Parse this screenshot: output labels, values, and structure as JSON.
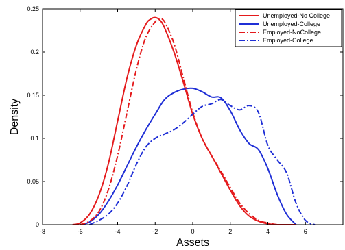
{
  "chart_data": {
    "type": "line",
    "title": "",
    "xlabel": "Assets",
    "ylabel": "Density",
    "xlim": [
      -8,
      8
    ],
    "ylim": [
      0,
      0.25
    ],
    "xticks": [
      "-8",
      "-6",
      "-4",
      "-2",
      "0",
      "2",
      "4",
      "6"
    ],
    "yticks": [
      "0",
      "0.05",
      "0.1",
      "0.15",
      "0.2",
      "0.25"
    ],
    "grid": false,
    "legend_position": "top-right",
    "series": [
      {
        "name": "Unemployed-No College",
        "color": "#e41a1c",
        "line_style": "solid",
        "x": [
          -6.4,
          -6.0,
          -5.5,
          -5.0,
          -4.5,
          -4.0,
          -3.5,
          -3.0,
          -2.5,
          -2.25,
          -2.0,
          -1.75,
          -1.5,
          -1.0,
          -0.5,
          0.0,
          0.5,
          1.0,
          1.5,
          2.0,
          2.5,
          3.0,
          3.5,
          4.0,
          4.5,
          5.0,
          5.4
        ],
        "y": [
          0.0,
          0.002,
          0.012,
          0.034,
          0.07,
          0.12,
          0.17,
          0.208,
          0.232,
          0.238,
          0.24,
          0.237,
          0.228,
          0.2,
          0.165,
          0.128,
          0.1,
          0.08,
          0.06,
          0.04,
          0.022,
          0.01,
          0.004,
          0.001,
          0.0,
          0.0,
          0.0
        ]
      },
      {
        "name": "Unemployed-College",
        "color": "#1f2fd6",
        "line_style": "solid",
        "x": [
          -6.0,
          -5.5,
          -5.0,
          -4.5,
          -4.0,
          -3.5,
          -3.0,
          -2.5,
          -2.0,
          -1.5,
          -1.0,
          -0.5,
          0.0,
          0.5,
          1.0,
          1.5,
          2.0,
          2.5,
          3.0,
          3.5,
          4.0,
          4.5,
          5.0,
          5.5
        ],
        "y": [
          0.0,
          0.003,
          0.012,
          0.027,
          0.046,
          0.068,
          0.09,
          0.11,
          0.128,
          0.145,
          0.153,
          0.157,
          0.158,
          0.154,
          0.148,
          0.147,
          0.132,
          0.11,
          0.094,
          0.087,
          0.065,
          0.035,
          0.012,
          0.0
        ]
      },
      {
        "name": "Employed-NoCollege",
        "color": "#e41a1c",
        "line_style": "dashdot",
        "x": [
          -6.0,
          -5.5,
          -5.0,
          -4.5,
          -4.0,
          -3.5,
          -3.0,
          -2.5,
          -2.0,
          -1.75,
          -1.5,
          -1.0,
          -0.5,
          0.0,
          0.5,
          1.0,
          1.5,
          2.0,
          2.5,
          3.0,
          3.5,
          4.0,
          4.5,
          5.0,
          5.5
        ],
        "y": [
          0.0,
          0.004,
          0.015,
          0.04,
          0.08,
          0.13,
          0.18,
          0.217,
          0.235,
          0.238,
          0.235,
          0.21,
          0.17,
          0.13,
          0.1,
          0.08,
          0.062,
          0.043,
          0.025,
          0.013,
          0.005,
          0.002,
          0.0,
          0.0,
          0.0
        ]
      },
      {
        "name": "Employed-College",
        "color": "#1f2fd6",
        "line_style": "dashdot",
        "x": [
          -5.5,
          -5.0,
          -4.5,
          -4.0,
          -3.5,
          -3.0,
          -2.5,
          -2.0,
          -1.5,
          -1.0,
          -0.5,
          0.0,
          0.5,
          1.0,
          1.5,
          2.0,
          2.5,
          3.0,
          3.5,
          4.0,
          4.5,
          5.0,
          5.5,
          6.0,
          6.5
        ],
        "y": [
          0.0,
          0.005,
          0.012,
          0.025,
          0.045,
          0.07,
          0.09,
          0.1,
          0.105,
          0.11,
          0.118,
          0.128,
          0.137,
          0.14,
          0.145,
          0.138,
          0.133,
          0.138,
          0.13,
          0.092,
          0.075,
          0.06,
          0.025,
          0.005,
          0.0
        ]
      }
    ]
  }
}
